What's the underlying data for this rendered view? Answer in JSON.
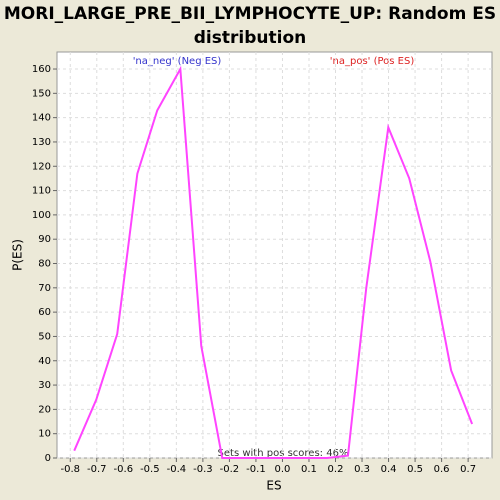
{
  "chart_data": {
    "type": "line",
    "title": "MORI_LARGE_PRE_BII_LYMPHOCYTE_UP: Random ES distribution",
    "xlabel": "ES",
    "ylabel": "P(ES)",
    "annotations": [
      "'na_neg' (Neg ES)",
      "'na_pos' (Pos ES)",
      "Sets with pos scores: 46%"
    ],
    "x": [
      -0.785,
      -0.702,
      -0.623,
      -0.547,
      -0.472,
      -0.385,
      -0.306,
      -0.227,
      -0.148,
      -0.069,
      0.01,
      0.089,
      0.168,
      0.247,
      0.316,
      0.399,
      0.478,
      0.557,
      0.636,
      0.715
    ],
    "series": [
      {
        "name": "P(ES)",
        "color": "#ff44ff",
        "values": [
          3,
          24,
          51,
          117,
          143,
          160,
          46,
          0,
          0,
          0,
          0,
          0,
          0,
          1,
          70,
          136,
          115,
          81,
          36,
          14
        ]
      }
    ],
    "xlim": [
      -0.85,
      0.79
    ],
    "ylim": [
      0,
      167
    ],
    "xticks": [
      -0.8,
      -0.7,
      -0.6,
      -0.5,
      -0.4,
      -0.3,
      -0.2,
      -0.1,
      {
        "value": 0,
        "label": "0.0"
      },
      0.1,
      0.2,
      0.3,
      0.4,
      0.5,
      0.6,
      0.7
    ],
    "yticks": [
      0,
      10,
      20,
      30,
      40,
      50,
      60,
      70,
      80,
      90,
      100,
      110,
      120,
      130,
      140,
      150,
      160
    ],
    "grid": true
  }
}
